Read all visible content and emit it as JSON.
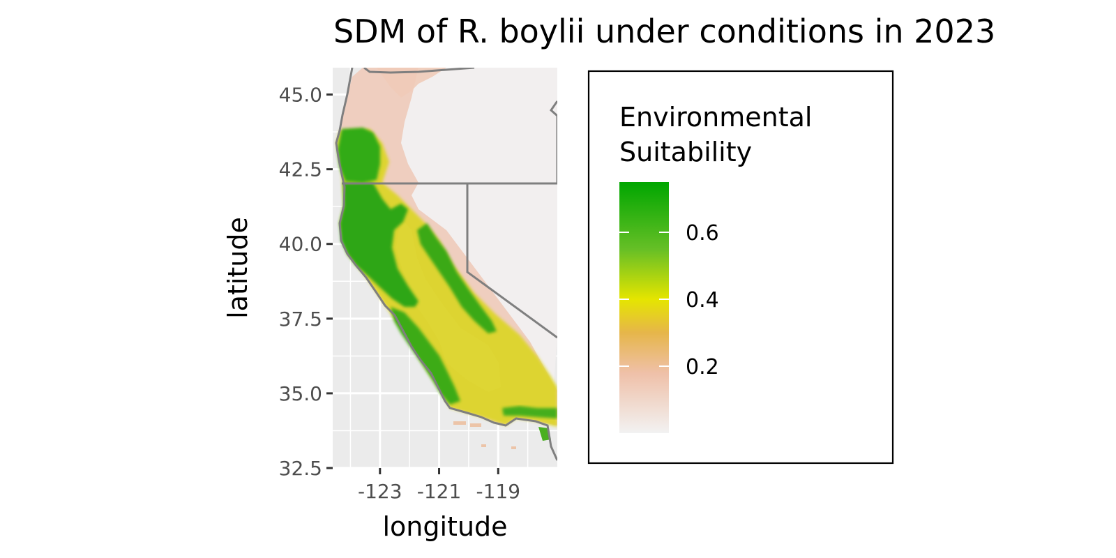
{
  "chart_data": {
    "type": "heatmap",
    "title": "SDM of R. boylii under conditions in 2023",
    "xlabel": "longitude",
    "ylabel": "latitude",
    "x_ticks": [
      -123,
      -121,
      -119
    ],
    "x_tick_labels": [
      "-123",
      "-121",
      "-119"
    ],
    "y_ticks": [
      32.5,
      35.0,
      37.5,
      40.0,
      42.5,
      45.0
    ],
    "y_tick_labels": [
      "32.5",
      "35.0",
      "37.5",
      "40.0",
      "42.5",
      "45.0"
    ],
    "xlim": [
      -124.6,
      -117.0
    ],
    "ylim": [
      32.5,
      45.9
    ],
    "grid": true,
    "legend": {
      "title": "Environmental Suitability",
      "title_lines": [
        "Environmental",
        "Suitability"
      ],
      "placement": "right",
      "breaks": [
        0.2,
        0.4,
        0.6
      ],
      "break_labels": [
        "0.2",
        "0.4",
        "0.6"
      ],
      "range": [
        0.0,
        0.75
      ],
      "colors": [
        {
          "value": 0.0,
          "color": "#f2f2f2"
        },
        {
          "value": 0.18,
          "color": "#efc0a8"
        },
        {
          "value": 0.3,
          "color": "#e6b64a"
        },
        {
          "value": 0.4,
          "color": "#e5e500"
        },
        {
          "value": 0.55,
          "color": "#66bf26"
        },
        {
          "value": 0.75,
          "color": "#00a600"
        }
      ]
    },
    "boundary_color": "#7f7f7f",
    "panel_background": "#ebebeb"
  }
}
